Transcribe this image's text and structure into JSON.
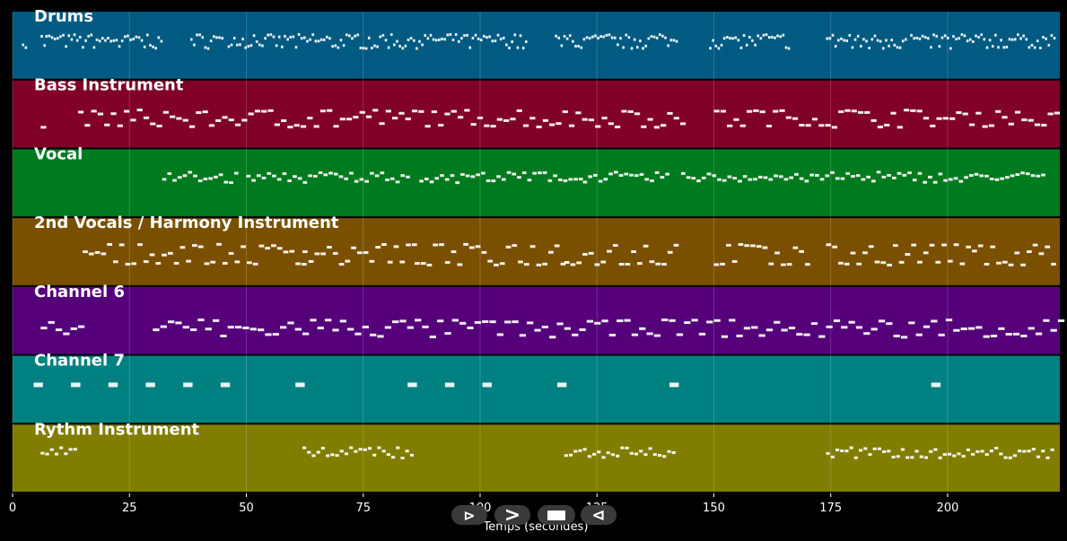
{
  "chart_data": {
    "type": "piano-roll",
    "xlabel": "Temps (secondes)",
    "xlim": [
      0,
      224
    ],
    "xticks": [
      0,
      25,
      50,
      75,
      100,
      125,
      150,
      175,
      200
    ],
    "grid": true,
    "tracks": [
      {
        "name": "Drums",
        "color": "#005a82",
        "sections": [
          [
            2,
            3
          ],
          [
            6,
            7
          ],
          [
            7,
            32
          ],
          [
            38,
            45
          ],
          [
            46,
            110
          ],
          [
            116,
            142
          ],
          [
            149,
            166
          ],
          [
            174,
            191
          ],
          [
            192,
            223
          ]
        ],
        "note_level": [
          0.5,
          0.6,
          0.65
        ],
        "note_len": 0.5,
        "note_step": 0.6
      },
      {
        "name": "Bass Instrument",
        "color": "#800028",
        "sections": [
          [
            6,
            7
          ],
          [
            14,
            143
          ],
          [
            150,
            223
          ]
        ],
        "note_level": [
          0.35,
          0.45,
          0.55
        ],
        "note_len": 1.2,
        "note_step": 1.4
      },
      {
        "name": "Vocal",
        "color": "#007a1e",
        "sections": [
          [
            32,
            48
          ],
          [
            50,
            85
          ],
          [
            87,
            122
          ],
          [
            122,
            140
          ],
          [
            143,
            221
          ]
        ],
        "note_level": [
          0.55,
          0.6,
          0.65
        ],
        "note_len": 0.9,
        "note_step": 1.1
      },
      {
        "name": "2nd Vocals / Harmony Instrument",
        "color": "#7a5000",
        "sections": [
          [
            15,
            62
          ],
          [
            62,
            86
          ],
          [
            86,
            118
          ],
          [
            118,
            142
          ],
          [
            150,
            170
          ],
          [
            174,
            223
          ]
        ],
        "note_level": [
          0.35,
          0.5,
          0.6
        ],
        "note_len": 1.1,
        "note_step": 1.3
      },
      {
        "name": "Channel 6",
        "color": "#55007a",
        "sections": [
          [
            6,
            14
          ],
          [
            30,
            224
          ]
        ],
        "note_level": [
          0.3,
          0.4,
          0.5
        ],
        "note_len": 1.4,
        "note_step": 1.6
      },
      {
        "name": "Channel 7",
        "color": "#008080",
        "notes": [
          5.5,
          13.5,
          21.5,
          29.5,
          37.5,
          45.5,
          61.5,
          85.5,
          93.5,
          101.5,
          117.5,
          141.5,
          197.5
        ],
        "note_level": [
          0.6
        ],
        "note_len": 2.0
      },
      {
        "name": "Rythm Instrument",
        "color": "#807d00",
        "sections": [
          [
            6,
            14
          ],
          [
            62,
            86
          ],
          [
            118,
            142
          ],
          [
            174,
            223
          ]
        ],
        "note_level": [
          0.55,
          0.6,
          0.65
        ],
        "note_len": 0.8,
        "note_step": 1.0
      }
    ]
  },
  "controls": {
    "play_label": "⊳",
    "next_label": ">",
    "stop_label": "",
    "prev_label": "⊲"
  }
}
